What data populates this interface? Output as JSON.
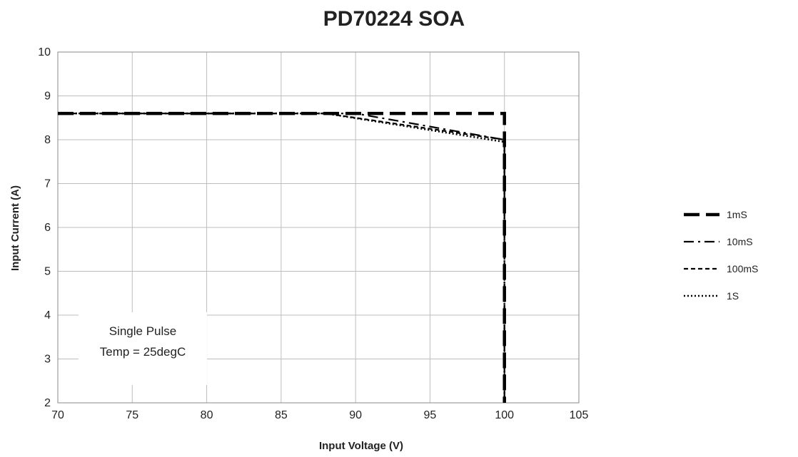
{
  "chart_data": {
    "type": "line",
    "title": "PD70224 SOA",
    "xlabel": "Input Voltage (V)",
    "ylabel": "Input Current (A)",
    "xlim": [
      70,
      105
    ],
    "ylim": [
      2,
      10
    ],
    "xticks": [
      70,
      75,
      80,
      85,
      90,
      95,
      100,
      105
    ],
    "yticks": [
      2,
      3,
      4,
      5,
      6,
      7,
      8,
      9,
      10
    ],
    "grid": true,
    "legend_position": "right",
    "annotation": [
      "Single Pulse",
      "Temp = 25degC"
    ],
    "series": [
      {
        "name": "1mS",
        "style": "long-dash",
        "x": [
          70,
          100,
          100
        ],
        "y": [
          8.6,
          8.6,
          2
        ]
      },
      {
        "name": "10mS",
        "style": "dash-dot",
        "x": [
          70,
          90,
          100,
          100
        ],
        "y": [
          8.6,
          8.6,
          8.0,
          2
        ]
      },
      {
        "name": "100mS",
        "style": "short-dash",
        "x": [
          70,
          88,
          100,
          100
        ],
        "y": [
          8.6,
          8.6,
          8.0,
          2
        ]
      },
      {
        "name": "1S",
        "style": "dotted",
        "x": [
          70,
          88,
          100,
          100
        ],
        "y": [
          8.6,
          8.6,
          7.95,
          2
        ]
      }
    ]
  }
}
